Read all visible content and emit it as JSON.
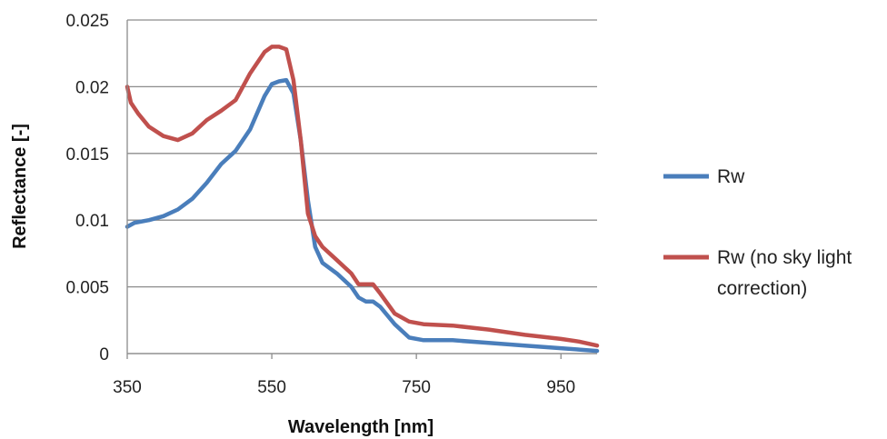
{
  "chart_data": {
    "type": "line",
    "title": "",
    "xlabel": "Wavelength [nm]",
    "ylabel": "Reflectance [-]",
    "xlim": [
      350,
      1000
    ],
    "ylim": [
      0,
      0.025
    ],
    "x_ticks": [
      350,
      550,
      750,
      950
    ],
    "x_tick_labels": [
      "350",
      "550",
      "750",
      "950"
    ],
    "y_ticks": [
      0,
      0.005,
      0.01,
      0.015,
      0.02,
      0.025
    ],
    "y_tick_labels": [
      "0",
      "0.005",
      "0.01",
      "0.015",
      "0.02",
      "0.025"
    ],
    "grid": "horizontal",
    "legend": "right",
    "series": [
      {
        "name": "Rw",
        "color": "#4a7ebb",
        "x": [
          350,
          360,
          380,
          400,
          420,
          440,
          460,
          480,
          500,
          520,
          540,
          550,
          560,
          570,
          580,
          590,
          600,
          610,
          620,
          640,
          660,
          670,
          680,
          690,
          700,
          720,
          740,
          760,
          800,
          850,
          900,
          950,
          975,
          1000
        ],
        "y": [
          0.0095,
          0.0098,
          0.01,
          0.0103,
          0.0108,
          0.0116,
          0.0128,
          0.0142,
          0.0152,
          0.0168,
          0.0193,
          0.0202,
          0.0204,
          0.0205,
          0.0195,
          0.016,
          0.0115,
          0.008,
          0.0068,
          0.006,
          0.005,
          0.0042,
          0.0039,
          0.0039,
          0.0035,
          0.0022,
          0.0012,
          0.001,
          0.001,
          0.0008,
          0.0006,
          0.0004,
          0.0003,
          0.0002
        ]
      },
      {
        "name": "Rw (no sky light correction)",
        "color": "#c0504d",
        "x": [
          350,
          355,
          365,
          380,
          400,
          420,
          440,
          460,
          480,
          500,
          520,
          540,
          550,
          560,
          570,
          580,
          590,
          600,
          610,
          620,
          640,
          660,
          670,
          680,
          690,
          700,
          720,
          740,
          760,
          800,
          850,
          900,
          950,
          975,
          1000
        ],
        "y": [
          0.02,
          0.0188,
          0.018,
          0.017,
          0.0163,
          0.016,
          0.0165,
          0.0175,
          0.0182,
          0.019,
          0.021,
          0.0226,
          0.023,
          0.023,
          0.0228,
          0.0205,
          0.016,
          0.0105,
          0.0088,
          0.008,
          0.007,
          0.006,
          0.0052,
          0.0052,
          0.0052,
          0.0045,
          0.003,
          0.0024,
          0.0022,
          0.0021,
          0.0018,
          0.0014,
          0.0011,
          0.0009,
          0.0006
        ]
      }
    ]
  },
  "legend": {
    "items": [
      {
        "lines": [
          "Rw"
        ]
      },
      {
        "lines": [
          "Rw (no sky light",
          "correction)"
        ]
      }
    ]
  }
}
